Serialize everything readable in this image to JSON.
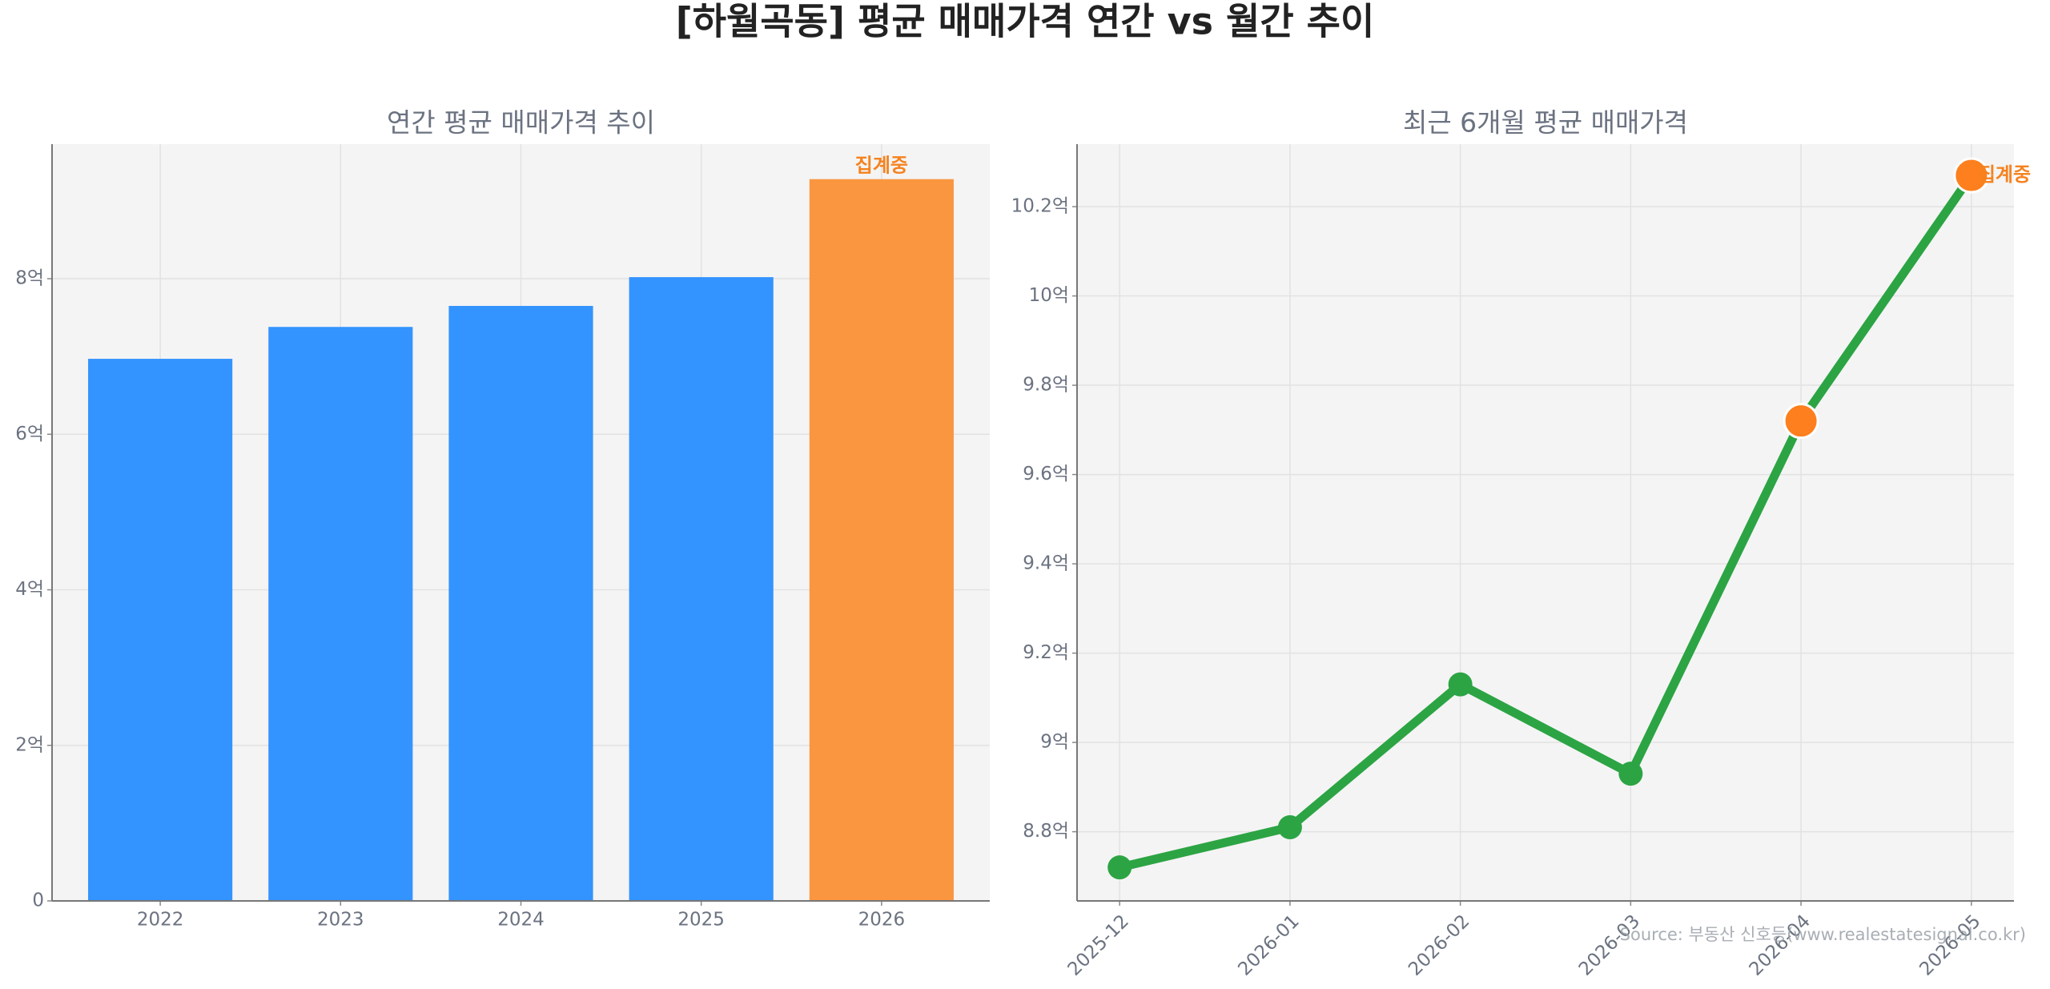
{
  "title": "[하월곡동] 평균 매매가격 연간 vs 월간 추이",
  "source": "Source: 부동산 신호등(www.realestatesignal.co.kr)",
  "chart_data": [
    {
      "type": "bar",
      "title": "연간 평균 매매가격 추이",
      "categories": [
        "2022",
        "2023",
        "2024",
        "2025",
        "2026"
      ],
      "values": [
        6.97,
        7.38,
        7.65,
        8.02,
        9.28
      ],
      "colors": [
        "#3393ff",
        "#3393ff",
        "#3393ff",
        "#3393ff",
        "#fa9640"
      ],
      "annotation": {
        "index": 4,
        "text": "집계중",
        "color": "#f5821f"
      },
      "ylim": [
        0,
        9.73
      ],
      "yticks": [
        0,
        {
          "value": 2,
          "label": "2억"
        },
        {
          "value": 4,
          "label": "4억"
        },
        {
          "value": 6,
          "label": "6억"
        },
        {
          "value": 8,
          "label": "8억"
        }
      ],
      "grid": true
    },
    {
      "type": "line",
      "title": "최근 6개월 평균 매매가격",
      "categories": [
        "2025-12",
        "2026-01",
        "2026-02",
        "2026-03",
        "2026-04",
        "2026-05"
      ],
      "values": [
        8.72,
        8.81,
        9.13,
        8.93,
        9.72,
        10.27
      ],
      "color": "#2ca444",
      "marker_colors": [
        "#2ca444",
        "#2ca444",
        "#2ca444",
        "#2ca444",
        "#fd7f1d",
        "#fd7f1d"
      ],
      "annotation": {
        "index": 5,
        "text": "집계중",
        "color": "#f5821f"
      },
      "ylim": [
        8.645,
        10.34
      ],
      "yticks": [
        {
          "value": 8.8,
          "label": "8.8억"
        },
        {
          "value": 9,
          "label": "9억"
        },
        {
          "value": 9.2,
          "label": "9.2억"
        },
        {
          "value": 9.4,
          "label": "9.4억"
        },
        {
          "value": 9.6,
          "label": "9.6억"
        },
        {
          "value": 9.8,
          "label": "9.8억"
        },
        {
          "value": 10,
          "label": "10억"
        },
        {
          "value": 10.2,
          "label": "10.2억"
        }
      ],
      "grid": true
    }
  ]
}
